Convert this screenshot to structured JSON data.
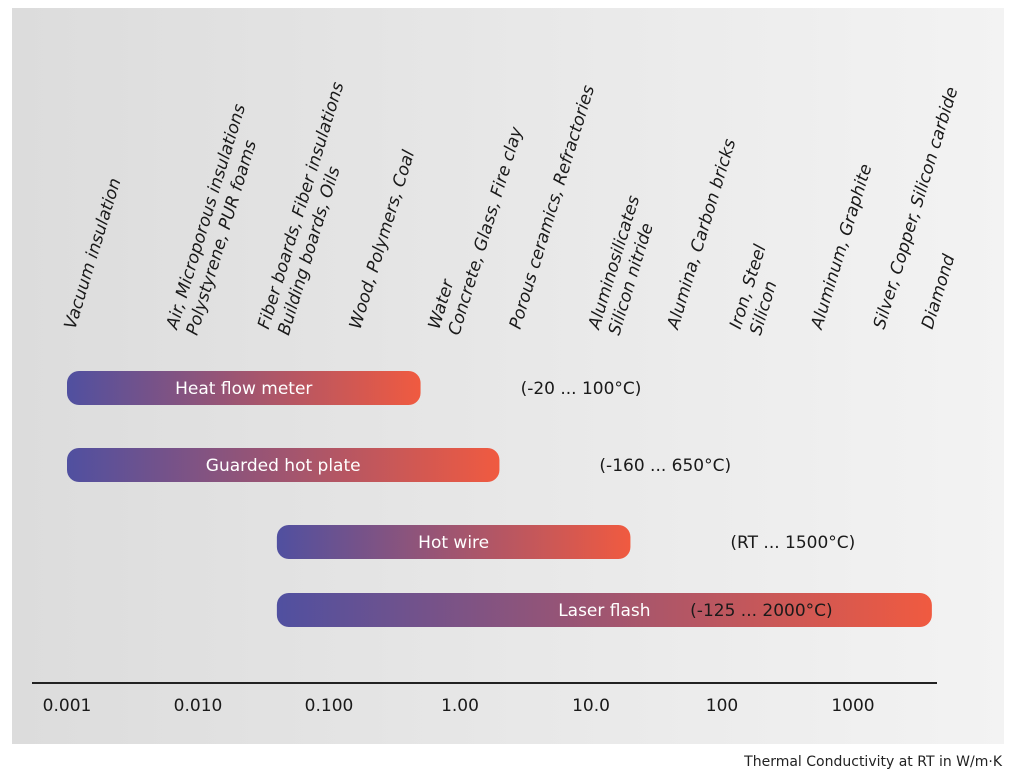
{
  "caption": "Thermal Conductivity at RT in W/m·K",
  "colors": {
    "bar_start": "#5050a0",
    "bar_end": "#f05a40",
    "axis": "#222222"
  },
  "chart_data": {
    "type": "bar",
    "orientation": "horizontal-range",
    "x_scale": "log",
    "xlim": [
      0.001,
      4000
    ],
    "xlabel": "Thermal Conductivity at RT in W/m·K",
    "ticks": [
      {
        "value": 0.001,
        "label": "0.001"
      },
      {
        "value": 0.01,
        "label": "0.010"
      },
      {
        "value": 0.1,
        "label": "0.100"
      },
      {
        "value": 1,
        "label": "1.00"
      },
      {
        "value": 10,
        "label": "10.0"
      },
      {
        "value": 100,
        "label": "100"
      },
      {
        "value": 1000,
        "label": "1000"
      }
    ],
    "methods": [
      {
        "name": "Heat flow meter",
        "min": 0.001,
        "max": 0.5,
        "range": "(-20 ... 100°C)"
      },
      {
        "name": "Guarded hot plate",
        "min": 0.001,
        "max": 2,
        "range": "(-160 ... 650°C)"
      },
      {
        "name": "Hot wire",
        "min": 0.04,
        "max": 20,
        "range": "(RT ... 1500°C)"
      },
      {
        "name": "Laser flash",
        "min": 0.04,
        "max": 4000,
        "range": "(-125 ... 2000°C)"
      }
    ],
    "materials": [
      {
        "x": 0.001,
        "lines": [
          "Vacuum insulation"
        ]
      },
      {
        "x": 0.006,
        "lines": [
          "Air, Microporous insulations",
          "Polystyrene, PUR foams"
        ]
      },
      {
        "x": 0.03,
        "lines": [
          "Fiber boards, Fiber insulations",
          "Building boards, Oils"
        ]
      },
      {
        "x": 0.15,
        "lines": [
          "Wood, Polymers, Coal"
        ]
      },
      {
        "x": 0.6,
        "lines": [
          "Water",
          "Concrete, Glass, Fire clay"
        ]
      },
      {
        "x": 2.5,
        "lines": [
          "Porous ceramics, Refractories"
        ]
      },
      {
        "x": 10,
        "lines": [
          "Aluminosilicates",
          "Silicon nitride"
        ]
      },
      {
        "x": 40,
        "lines": [
          "Alumina, Carbon bricks"
        ]
      },
      {
        "x": 120,
        "lines": [
          "Iron, Steel",
          "Silicon"
        ]
      },
      {
        "x": 500,
        "lines": [
          "Aluminum, Graphite"
        ]
      },
      {
        "x": 1500,
        "lines": [
          "Silver, Copper, Silicon carbide"
        ]
      },
      {
        "x": 3500,
        "lines": [
          "Diamond"
        ]
      }
    ]
  }
}
